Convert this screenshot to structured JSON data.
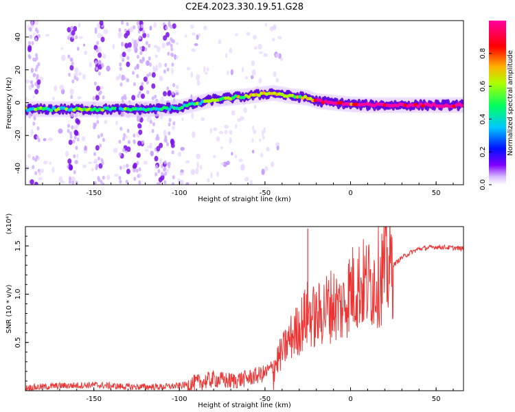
{
  "title": "C2E4.2023.330.19.51.G28",
  "chart_data": [
    {
      "type": "heatmap",
      "xlabel": "Height of straight line (km)",
      "ylabel": "Frequency (Hz)",
      "xlim": [
        -190,
        66
      ],
      "ylim": [
        -50,
        50
      ],
      "x_ticks": [
        -150,
        -100,
        -50,
        0,
        50
      ],
      "y_ticks": [
        -40,
        -20,
        0,
        20,
        40
      ],
      "colorbar": {
        "label": "Normalized spectral amplitude",
        "range": [
          0,
          1
        ],
        "ticks": [
          0.0,
          0.2,
          0.4,
          0.6,
          0.8
        ],
        "colormap": [
          "#ffffff",
          "#e0c4ff",
          "#8000ff",
          "#0010ff",
          "#00e0ff",
          "#00ff40",
          "#e0ff00",
          "#ffb000",
          "#ff0000",
          "#ff00a0"
        ]
      },
      "ridge": {
        "description_points_x": [
          -190,
          -150,
          -120,
          -100,
          -80,
          -60,
          -45,
          -35,
          -25,
          -20,
          -10,
          0,
          10,
          30,
          50,
          66
        ],
        "frequency_hz": [
          -4,
          -4,
          -4,
          -3,
          2,
          4,
          6,
          4,
          3,
          1,
          0,
          -1,
          -1.5,
          -1.5,
          -1.5,
          -1.5
        ],
        "amplitude": [
          0.4,
          0.4,
          0.3,
          0.45,
          0.5,
          0.5,
          0.55,
          0.5,
          0.6,
          0.9,
          0.95,
          0.85,
          0.9,
          0.95,
          0.95,
          0.95
        ]
      },
      "vertical_streaks_x": [
        -185,
        -162,
        -147,
        -132,
        -124,
        -116,
        -106
      ]
    },
    {
      "type": "line",
      "xlabel": "Height of straight line (km)",
      "ylabel": "SNR (10 * v/v)",
      "y_multiplier": "(x10⁴)",
      "xlim": [
        -190,
        66
      ],
      "ylim": [
        0,
        1.7
      ],
      "x_ticks": [
        -150,
        -100,
        -50,
        0,
        50
      ],
      "y_ticks": [
        0.5,
        1.0,
        1.5
      ],
      "color": "#ee3333",
      "series": [
        {
          "x": [
            -190,
            -170,
            -150,
            -130,
            -110,
            -100,
            -90,
            -80,
            -70,
            -60,
            -50,
            -45,
            -40,
            -35,
            -30,
            -25,
            -20,
            -15,
            -10,
            -5,
            0,
            5,
            10,
            15,
            20,
            25,
            30,
            35,
            40,
            50,
            60,
            66
          ],
          "y": [
            0.03,
            0.05,
            0.06,
            0.04,
            0.04,
            0.05,
            0.08,
            0.12,
            0.1,
            0.13,
            0.18,
            0.25,
            0.4,
            0.55,
            0.65,
            0.8,
            0.75,
            0.85,
            0.9,
            0.85,
            1.05,
            1.1,
            1.1,
            1.15,
            1.25,
            1.3,
            1.38,
            1.43,
            1.47,
            1.49,
            1.48,
            1.47
          ]
        }
      ],
      "spikes": [
        {
          "x": -25,
          "y": 1.68
        }
      ]
    }
  ]
}
